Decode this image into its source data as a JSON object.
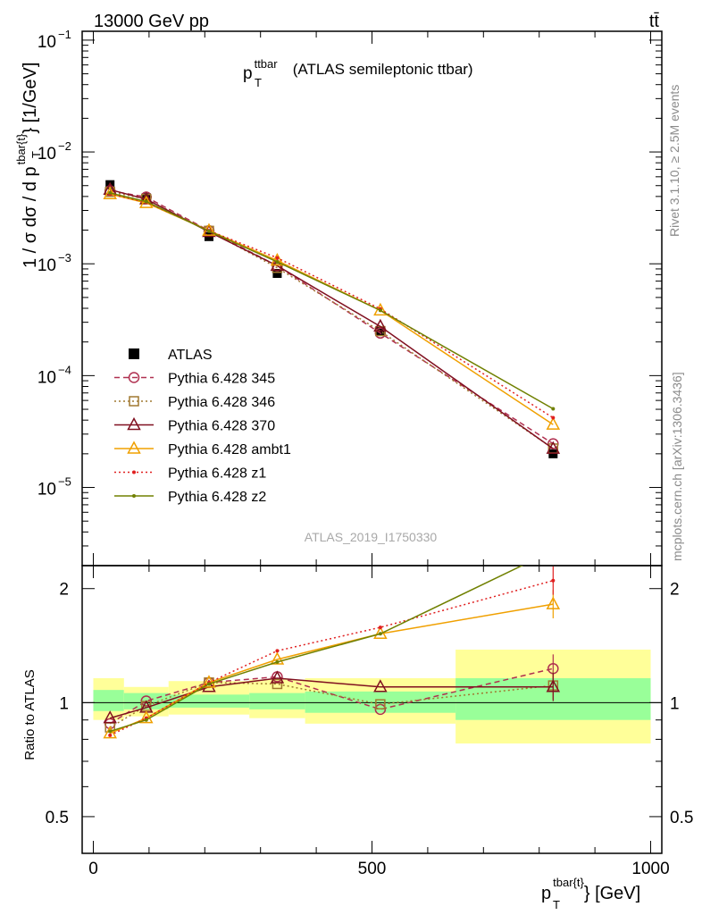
{
  "header": {
    "energy_label": "13000 GeV pp",
    "process_label": "tt̄"
  },
  "side_labels": {
    "rivet": "Rivet 3.1.10, ≥ 2.5M events",
    "mcplots": "mcplots.cern.ch [arXiv:1306.3436]"
  },
  "chart_data": [
    {
      "type": "line",
      "panel": "main",
      "title": "p_T^ttbar (ATLAS semileptonic ttbar)",
      "title_parts": {
        "main": "p",
        "sub": "T",
        "sup": "ttbar",
        "rest": " (ATLAS semileptonic ttbar)"
      },
      "ylabel_parts": {
        "pre": "1 / σ dσ / d p",
        "sub": "T",
        "sup": "tbar{t}",
        "post": "} [1/GeV]"
      },
      "y_scale": "log",
      "ylim": [
        2e-06,
        0.12
      ],
      "xlim": [
        -20,
        1020
      ],
      "y_tick_labels": [
        {
          "value": 0.1,
          "base": "10",
          "exp": "−1"
        },
        {
          "value": 0.01,
          "base": "10",
          "exp": "−2"
        },
        {
          "value": 0.001,
          "base": "10",
          "exp": "−3"
        },
        {
          "value": 0.0001,
          "base": "10",
          "exp": "−4"
        },
        {
          "value": 1e-05,
          "base": "10",
          "exp": "−5"
        }
      ],
      "watermark": "ATLAS_2019_I1750330",
      "x": [
        30,
        95,
        207.5,
        330,
        515,
        825
      ],
      "series": [
        {
          "name": "ATLAS",
          "color": "#000000",
          "style": "data",
          "values": [
            0.0051,
            0.0039,
            0.00175,
            0.00082,
            0.00025,
            2e-05
          ]
        },
        {
          "name": "Pythia 6.428 345",
          "color": "#b03050",
          "style": "dashed",
          "marker": "circle",
          "values": [
            0.0045,
            0.00395,
            0.00198,
            0.00096,
            0.00024,
            2.46e-05
          ]
        },
        {
          "name": "Pythia 6.428 346",
          "color": "#a07830",
          "style": "dotted",
          "marker": "square",
          "values": [
            0.0044,
            0.0038,
            0.00197,
            0.00092,
            0.00025,
            2.23e-05
          ]
        },
        {
          "name": "Pythia 6.428 370",
          "color": "#801020",
          "style": "solid",
          "marker": "triangle",
          "values": [
            0.0046,
            0.00378,
            0.00193,
            0.00096,
            0.000275,
            2.22e-05
          ]
        },
        {
          "name": "Pythia 6.428 ambt1",
          "color": "#f0a000",
          "style": "solid",
          "marker": "triangle",
          "values": [
            0.0042,
            0.0035,
            0.00198,
            0.00107,
            0.000383,
            3.65e-05
          ]
        },
        {
          "name": "Pythia 6.428 z1",
          "color": "#e02020",
          "style": "dotted",
          "marker": "dot",
          "values": [
            0.0042,
            0.00355,
            0.00198,
            0.00113,
            0.000395,
            4.2e-05
          ]
        },
        {
          "name": "Pythia 6.428 z2",
          "color": "#708000",
          "style": "solid",
          "marker": "dot",
          "values": [
            0.0043,
            0.0036,
            0.00196,
            0.00104,
            0.000383,
            5.05e-05
          ]
        }
      ]
    },
    {
      "type": "line",
      "panel": "ratio",
      "ylabel": "Ratio to ATLAS",
      "xlabel_parts": {
        "pre": "p",
        "sub": "T",
        "sup": "tbar{t}",
        "post": "} [GeV]"
      },
      "y_scale": "log",
      "ylim": [
        0.4,
        2.3
      ],
      "xlim": [
        -20,
        1020
      ],
      "y_tick_labels": [
        {
          "value": 0.5,
          "label": "0.5"
        },
        {
          "value": 1,
          "label": "1"
        },
        {
          "value": 2,
          "label": "2"
        }
      ],
      "x_tick_labels": [
        {
          "value": 0,
          "label": "0"
        },
        {
          "value": 500,
          "label": "500"
        },
        {
          "value": 1000,
          "label": "1000"
        }
      ],
      "uncertainty_bands": [
        {
          "x_low": 0,
          "x_high": 55,
          "stat_low": 0.95,
          "stat_high": 1.08,
          "total_low": 0.9,
          "total_high": 1.16
        },
        {
          "x_low": 55,
          "x_high": 135,
          "stat_low": 0.96,
          "stat_high": 1.06,
          "total_low": 0.92,
          "total_high": 1.1
        },
        {
          "x_low": 135,
          "x_high": 280,
          "stat_low": 0.97,
          "stat_high": 1.05,
          "total_low": 0.93,
          "total_high": 1.14
        },
        {
          "x_low": 280,
          "x_high": 380,
          "stat_low": 0.96,
          "stat_high": 1.06,
          "total_low": 0.91,
          "total_high": 1.15
        },
        {
          "x_low": 380,
          "x_high": 650,
          "stat_low": 0.94,
          "stat_high": 1.07,
          "total_low": 0.88,
          "total_high": 1.16
        },
        {
          "x_low": 650,
          "x_high": 1000,
          "stat_low": 0.9,
          "stat_high": 1.16,
          "total_low": 0.78,
          "total_high": 1.38
        }
      ],
      "x": [
        30,
        95,
        207.5,
        330,
        515,
        825
      ],
      "series": [
        {
          "name": "Pythia 6.428 345",
          "color": "#b03050",
          "style": "dashed",
          "marker": "circle",
          "values": [
            0.88,
            1.01,
            1.13,
            1.17,
            0.96,
            1.23
          ]
        },
        {
          "name": "Pythia 6.428 346",
          "color": "#a07830",
          "style": "dotted",
          "marker": "square",
          "values": [
            0.86,
            0.98,
            1.13,
            1.12,
            0.99,
            1.11
          ]
        },
        {
          "name": "Pythia 6.428 370",
          "color": "#801020",
          "style": "solid",
          "marker": "triangle",
          "values": [
            0.91,
            0.97,
            1.1,
            1.16,
            1.1,
            1.1
          ]
        },
        {
          "name": "Pythia 6.428 ambt1",
          "color": "#f0a000",
          "style": "solid",
          "marker": "triangle",
          "values": [
            0.83,
            0.91,
            1.13,
            1.3,
            1.52,
            1.82
          ]
        },
        {
          "name": "Pythia 6.428 z1",
          "color": "#e02020",
          "style": "dotted",
          "marker": "dot",
          "values": [
            0.82,
            0.91,
            1.13,
            1.37,
            1.58,
            2.1
          ]
        },
        {
          "name": "Pythia 6.428 z2",
          "color": "#708000",
          "style": "solid",
          "marker": "dot",
          "values": [
            0.84,
            0.9,
            1.12,
            1.28,
            1.52,
            2.52
          ]
        }
      ]
    }
  ]
}
